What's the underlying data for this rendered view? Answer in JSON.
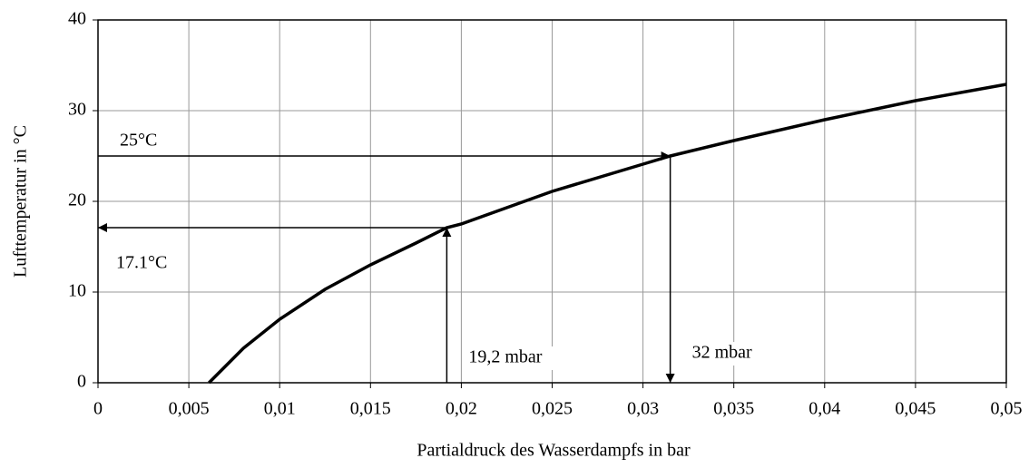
{
  "chart_data": {
    "type": "line",
    "xlabel": "Partialdruck des Wasserdampfs in bar",
    "ylabel": "Lufttemperatur in °C",
    "x": [
      0.00611,
      0.008,
      0.01,
      0.0125,
      0.015,
      0.0175,
      0.0192,
      0.02,
      0.025,
      0.03,
      0.0315,
      0.035,
      0.04,
      0.045,
      0.05
    ],
    "series": [
      {
        "color": "#000000",
        "values": [
          0,
          3.8,
          7.0,
          10.3,
          13.0,
          15.4,
          17.1,
          17.5,
          21.1,
          24.1,
          25,
          26.7,
          29.0,
          31.1,
          32.9
        ]
      }
    ],
    "xlim": [
      0,
      0.05
    ],
    "ylim": [
      0,
      40
    ],
    "xticks": [
      0,
      {
        "value": 0.005,
        "label": "0,005"
      },
      {
        "value": 0.01,
        "label": "0,01"
      },
      {
        "value": 0.015,
        "label": "0,015"
      },
      {
        "value": 0.02,
        "label": "0,02"
      },
      {
        "value": 0.025,
        "label": "0,025"
      },
      {
        "value": 0.03,
        "label": "0,03"
      },
      {
        "value": 0.035,
        "label": "0,035"
      },
      {
        "value": 0.04,
        "label": "0,04"
      },
      {
        "value": 0.045,
        "label": "0,045"
      },
      {
        "value": 0.05,
        "label": "0,05"
      }
    ],
    "yticks": [
      0,
      10,
      20,
      30,
      40
    ],
    "grid": true,
    "annotations": [
      {
        "text": "25°C",
        "x": 0.0315,
        "y": 25,
        "direction": "down"
      },
      {
        "text": "32 mbar",
        "x": 0.0315,
        "y": 25,
        "direction": "down"
      },
      {
        "text": "19,2 mbar",
        "x": 0.0192,
        "y": 17.1,
        "direction": "up"
      },
      {
        "text": "17.1°C",
        "x": 0.0192,
        "y": 17.1,
        "direction": "up"
      }
    ]
  }
}
